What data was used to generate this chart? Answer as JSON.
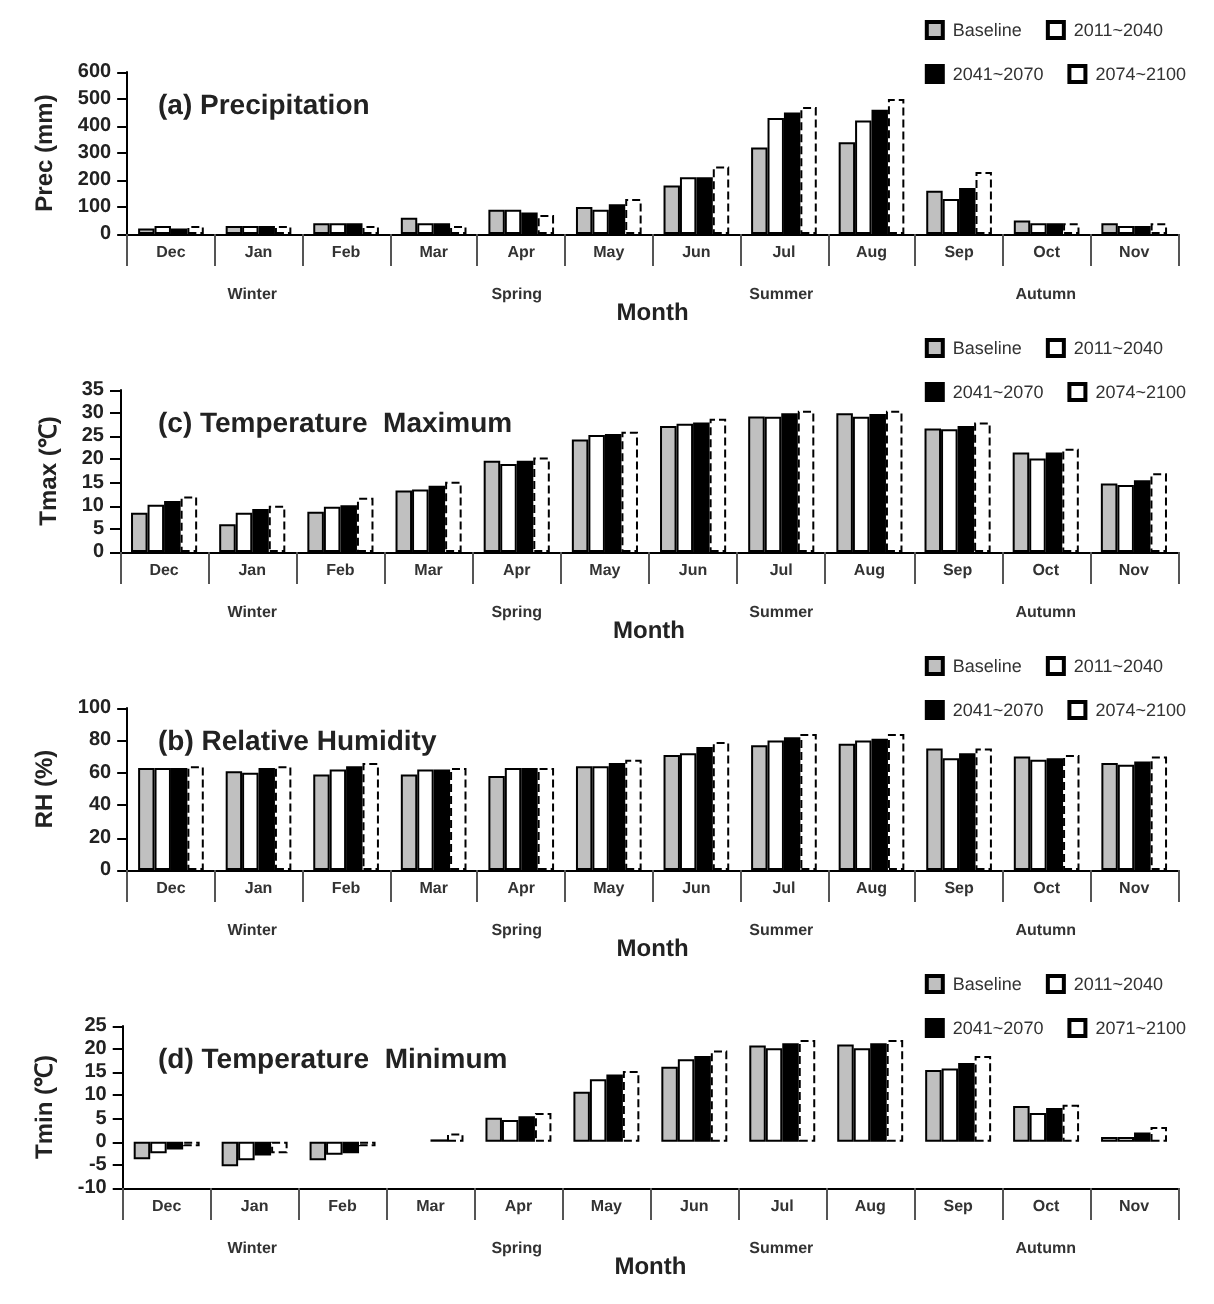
{
  "chart_data": [
    {
      "type": "bar",
      "title": "(a) Precipitation",
      "xlabel": "Month",
      "ylabel": "Prec (mm)",
      "categories": [
        "Dec",
        "Jan",
        "Feb",
        "Mar",
        "Apr",
        "May",
        "Jun",
        "Jul",
        "Aug",
        "Sep",
        "Oct",
        "Nov"
      ],
      "annotations": [
        "Winter",
        "Spring",
        "Summer",
        "Autumn"
      ],
      "ylim": [
        0,
        600
      ],
      "yticks": [
        0,
        100,
        200,
        300,
        400,
        500,
        600
      ],
      "grid": false,
      "legend": "top right",
      "series": [
        {
          "name": "Baseline",
          "color": "#c0c0c0",
          "values": [
            20,
            30,
            40,
            60,
            90,
            100,
            180,
            320,
            340,
            160,
            50,
            40
          ]
        },
        {
          "name": "2011~2040",
          "color": "#ffffff",
          "values": [
            30,
            30,
            40,
            40,
            90,
            90,
            210,
            430,
            420,
            130,
            40,
            30
          ]
        },
        {
          "name": "2041~2070",
          "color": "#000000",
          "values": [
            20,
            30,
            40,
            40,
            80,
            110,
            210,
            450,
            460,
            170,
            40,
            30
          ]
        },
        {
          "name": "2074~2100",
          "color": "#ffffff",
          "line_style": "dashed",
          "values": [
            30,
            30,
            30,
            30,
            70,
            130,
            250,
            470,
            500,
            230,
            40,
            40
          ]
        }
      ]
    },
    {
      "type": "bar",
      "title": "(c) Temperature  Maximum",
      "xlabel": "Month",
      "ylabel": "Tmax (℃)",
      "categories": [
        "Dec",
        "Jan",
        "Feb",
        "Mar",
        "Apr",
        "May",
        "Jun",
        "Jul",
        "Aug",
        "Sep",
        "Oct",
        "Nov"
      ],
      "annotations": [
        "Winter",
        "Spring",
        "Summer",
        "Autumn"
      ],
      "ylim": [
        0,
        35
      ],
      "yticks": [
        0,
        5,
        10,
        15,
        20,
        25,
        30,
        35
      ],
      "grid": false,
      "legend": "top right",
      "series": [
        {
          "name": "Baseline",
          "color": "#c0c0c0",
          "values": [
            8.5,
            6,
            8.7,
            13.3,
            19.7,
            24.3,
            27.2,
            29.3,
            30,
            26.7,
            21.5,
            14.8
          ]
        },
        {
          "name": "2011~2040",
          "color": "#ffffff",
          "values": [
            10.2,
            8.5,
            9.8,
            13.5,
            19,
            25.3,
            27.7,
            29.2,
            29.2,
            26.5,
            20.2,
            14.5
          ]
        },
        {
          "name": "2041~2070",
          "color": "#000000",
          "values": [
            11,
            9.3,
            10.1,
            14.3,
            19.7,
            25.5,
            28,
            30,
            29.8,
            27.2,
            21.5,
            15.5
          ]
        },
        {
          "name": "2074~2100",
          "color": "#ffffff",
          "line_style": "dashed",
          "values": [
            12,
            10,
            11.7,
            15.2,
            20.4,
            26,
            28.8,
            30.5,
            30.5,
            28,
            22.3,
            17
          ]
        }
      ]
    },
    {
      "type": "bar",
      "title": "(b) Relative Humidity",
      "xlabel": "Month",
      "ylabel": "RH (%)",
      "categories": [
        "Dec",
        "Jan",
        "Feb",
        "Mar",
        "Apr",
        "May",
        "Jun",
        "Jul",
        "Aug",
        "Sep",
        "Oct",
        "Nov"
      ],
      "annotations": [
        "Winter",
        "Spring",
        "Summer",
        "Autumn"
      ],
      "ylim": [
        0,
        100
      ],
      "yticks": [
        0,
        20,
        40,
        60,
        80,
        100
      ],
      "grid": false,
      "legend": "top right",
      "series": [
        {
          "name": "Baseline",
          "color": "#c0c0c0",
          "values": [
            63,
            61,
            59,
            59,
            58,
            64,
            71,
            77,
            78,
            75,
            70,
            66
          ]
        },
        {
          "name": "2011~2040",
          "color": "#ffffff",
          "values": [
            63,
            60,
            62,
            62,
            63,
            64,
            72,
            80,
            80,
            69,
            68,
            65
          ]
        },
        {
          "name": "2041~2070",
          "color": "#000000",
          "values": [
            63,
            63,
            64,
            62,
            63,
            66,
            76,
            82,
            81,
            72,
            69,
            67
          ]
        },
        {
          "name": "2074~2100",
          "color": "#ffffff",
          "line_style": "dashed",
          "values": [
            64,
            64,
            66,
            63,
            63,
            68,
            79,
            84,
            84,
            75,
            71,
            70
          ]
        }
      ]
    },
    {
      "type": "bar",
      "title": "(d) Temperature  Minimum",
      "xlabel": "Month",
      "ylabel": "Tmin (℃)",
      "categories": [
        "Dec",
        "Jan",
        "Feb",
        "Mar",
        "Apr",
        "May",
        "Jun",
        "Jul",
        "Aug",
        "Sep",
        "Oct",
        "Nov"
      ],
      "annotations": [
        "Winter",
        "Spring",
        "Summer",
        "Autumn"
      ],
      "ylim": [
        -10,
        25
      ],
      "yticks": [
        -10,
        -5,
        0,
        5,
        10,
        15,
        20,
        25
      ],
      "grid": false,
      "legend": "top right",
      "series": [
        {
          "name": "Baseline",
          "color": "#c0c0c0",
          "values": [
            -3.8,
            -5.3,
            -4,
            null,
            5.2,
            10.8,
            16.2,
            20.8,
            21,
            15.5,
            7.7,
            1
          ]
        },
        {
          "name": "2011~2040",
          "color": "#ffffff",
          "values": [
            -2.5,
            -4,
            -2.8,
            null,
            4.7,
            13.5,
            17.8,
            20.2,
            20.2,
            15.8,
            6.2,
            1
          ]
        },
        {
          "name": "2041~2070",
          "color": "#000000",
          "values": [
            -1.7,
            -3,
            -2.5,
            0.5,
            5.5,
            14.5,
            18.5,
            21.3,
            21.3,
            17,
            7.3,
            2
          ]
        },
        {
          "name": "2071~2100",
          "color": "#ffffff",
          "line_style": "dashed",
          "values": [
            -1,
            -2.5,
            -1,
            1.8,
            6.2,
            15.3,
            19.7,
            22,
            22,
            18.5,
            8,
            3.2
          ]
        }
      ]
    }
  ]
}
